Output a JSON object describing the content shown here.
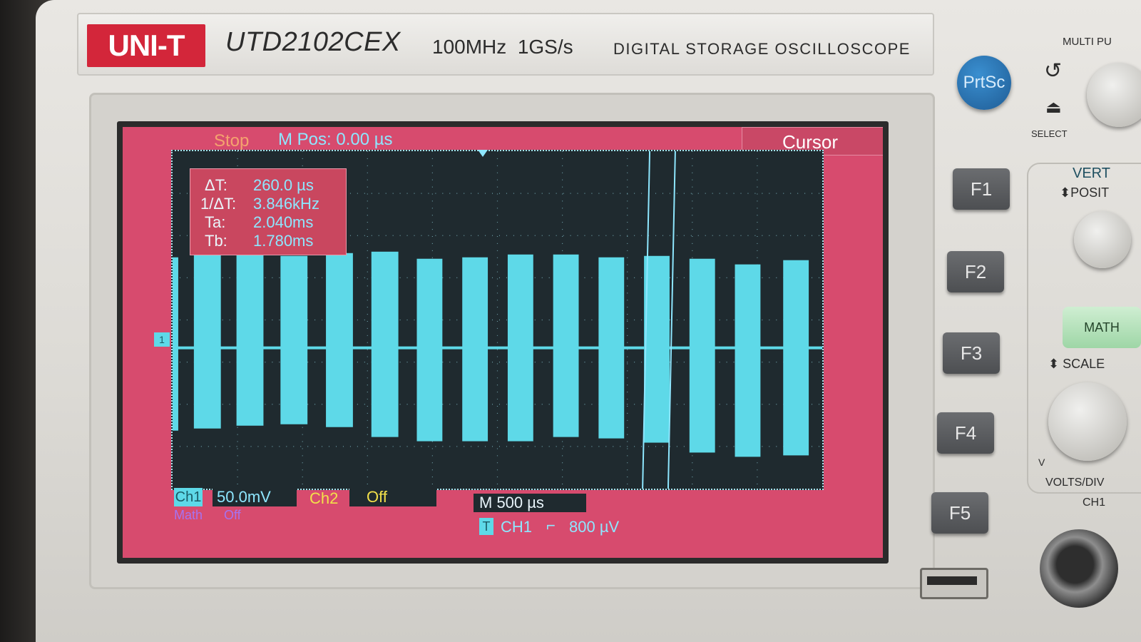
{
  "brand": {
    "logo": "UNI-T",
    "model": "UTD2102CEX",
    "specs": "100MHz  1GS/s",
    "subtitle": "DIGITAL STORAGE OSCILLOSCOPE"
  },
  "screen": {
    "status": "Stop",
    "m_pos": "M Pos: 0.00 µs",
    "menu_title": "Cursor",
    "cursor_readout": [
      {
        "label": "ΔT:",
        "value": "260.0 µs"
      },
      {
        "label": "1/ΔT:",
        "value": "3.846kHz"
      },
      {
        "label": "Ta:",
        "value": "2.040ms"
      },
      {
        "label": "Tb:",
        "value": "1.780ms"
      }
    ],
    "ch1": {
      "tag": "Ch1",
      "scale": "50.0mV"
    },
    "ch2": {
      "label": "Ch2",
      "state": "Off"
    },
    "math": {
      "label": "Math",
      "state": "Off"
    },
    "timebase": "M 500 µs",
    "trigger": {
      "tag": "T",
      "source": "CH1",
      "edge": "⌐",
      "level": "800 µV"
    },
    "channel_marker": "1"
  },
  "buttons": {
    "prtsc": "PrtSc",
    "function_keys": [
      "F1",
      "F2",
      "F3",
      "F4",
      "F5"
    ],
    "math": "MATH"
  },
  "labels": {
    "multi_purpose": "MULTI PU",
    "select": "SELECT",
    "vertical": "VERT",
    "position": "⬍POSIT",
    "scale": "⬍ SCALE",
    "volts_div": "VOLTS/DIV",
    "ch1_input": "CH1",
    "v": "V"
  },
  "colors": {
    "screen_bg": "#d74b6e",
    "grid_bg": "#1f2a2f",
    "trace": "#5ed9e8",
    "logo_red": "#d3263a",
    "ch2_yellow": "#f2e04a",
    "math_purple": "#a673f0"
  }
}
